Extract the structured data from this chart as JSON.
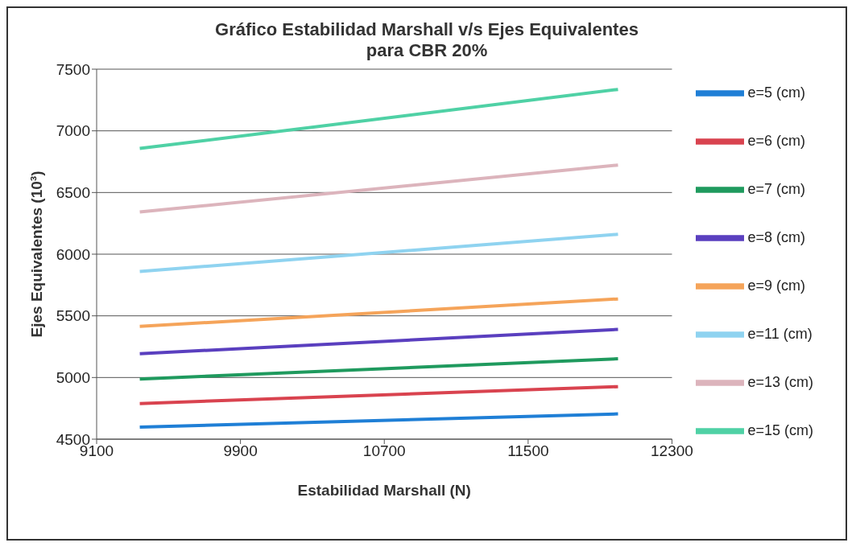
{
  "chart_data": {
    "type": "line",
    "title": "Gráfico Estabilidad Marshall v/s Ejes Equivalentes\npara CBR 20%",
    "xlabel": "Estabilidad Marshall (N)",
    "ylabel": "Ejes Equivalentes  (10³)",
    "x": [
      9340,
      12000
    ],
    "xlim": [
      9100,
      12300
    ],
    "xticks": [
      9100,
      9900,
      10700,
      11500,
      12300
    ],
    "ylim": [
      4500,
      7500
    ],
    "yticks": [
      4500,
      5000,
      5500,
      6000,
      6500,
      7000,
      7500
    ],
    "grid": "y",
    "legend": "right",
    "marker": "none",
    "line_style": "solid",
    "series": [
      {
        "name": "e=5 (cm)",
        "color": "#1f7fd6",
        "values": [
          4598,
          4705
        ]
      },
      {
        "name": "e=6 (cm)",
        "color": "#d9434f",
        "values": [
          4789,
          4926
        ]
      },
      {
        "name": "e=7 (cm)",
        "color": "#1f9a5e",
        "values": [
          4988,
          5152
        ]
      },
      {
        "name": "e=8 (cm)",
        "color": "#5a3fbf",
        "values": [
          5193,
          5390
        ]
      },
      {
        "name": "e=9 (cm)",
        "color": "#f5a45a",
        "values": [
          5414,
          5637
        ]
      },
      {
        "name": "e=11 (cm)",
        "color": "#8fd3f0",
        "values": [
          5860,
          6161
        ]
      },
      {
        "name": "e=13 (cm)",
        "color": "#dcb4bc",
        "values": [
          6342,
          6723
        ]
      },
      {
        "name": "e=15 (cm)",
        "color": "#4fd1a5",
        "values": [
          6857,
          7336
        ]
      }
    ]
  }
}
